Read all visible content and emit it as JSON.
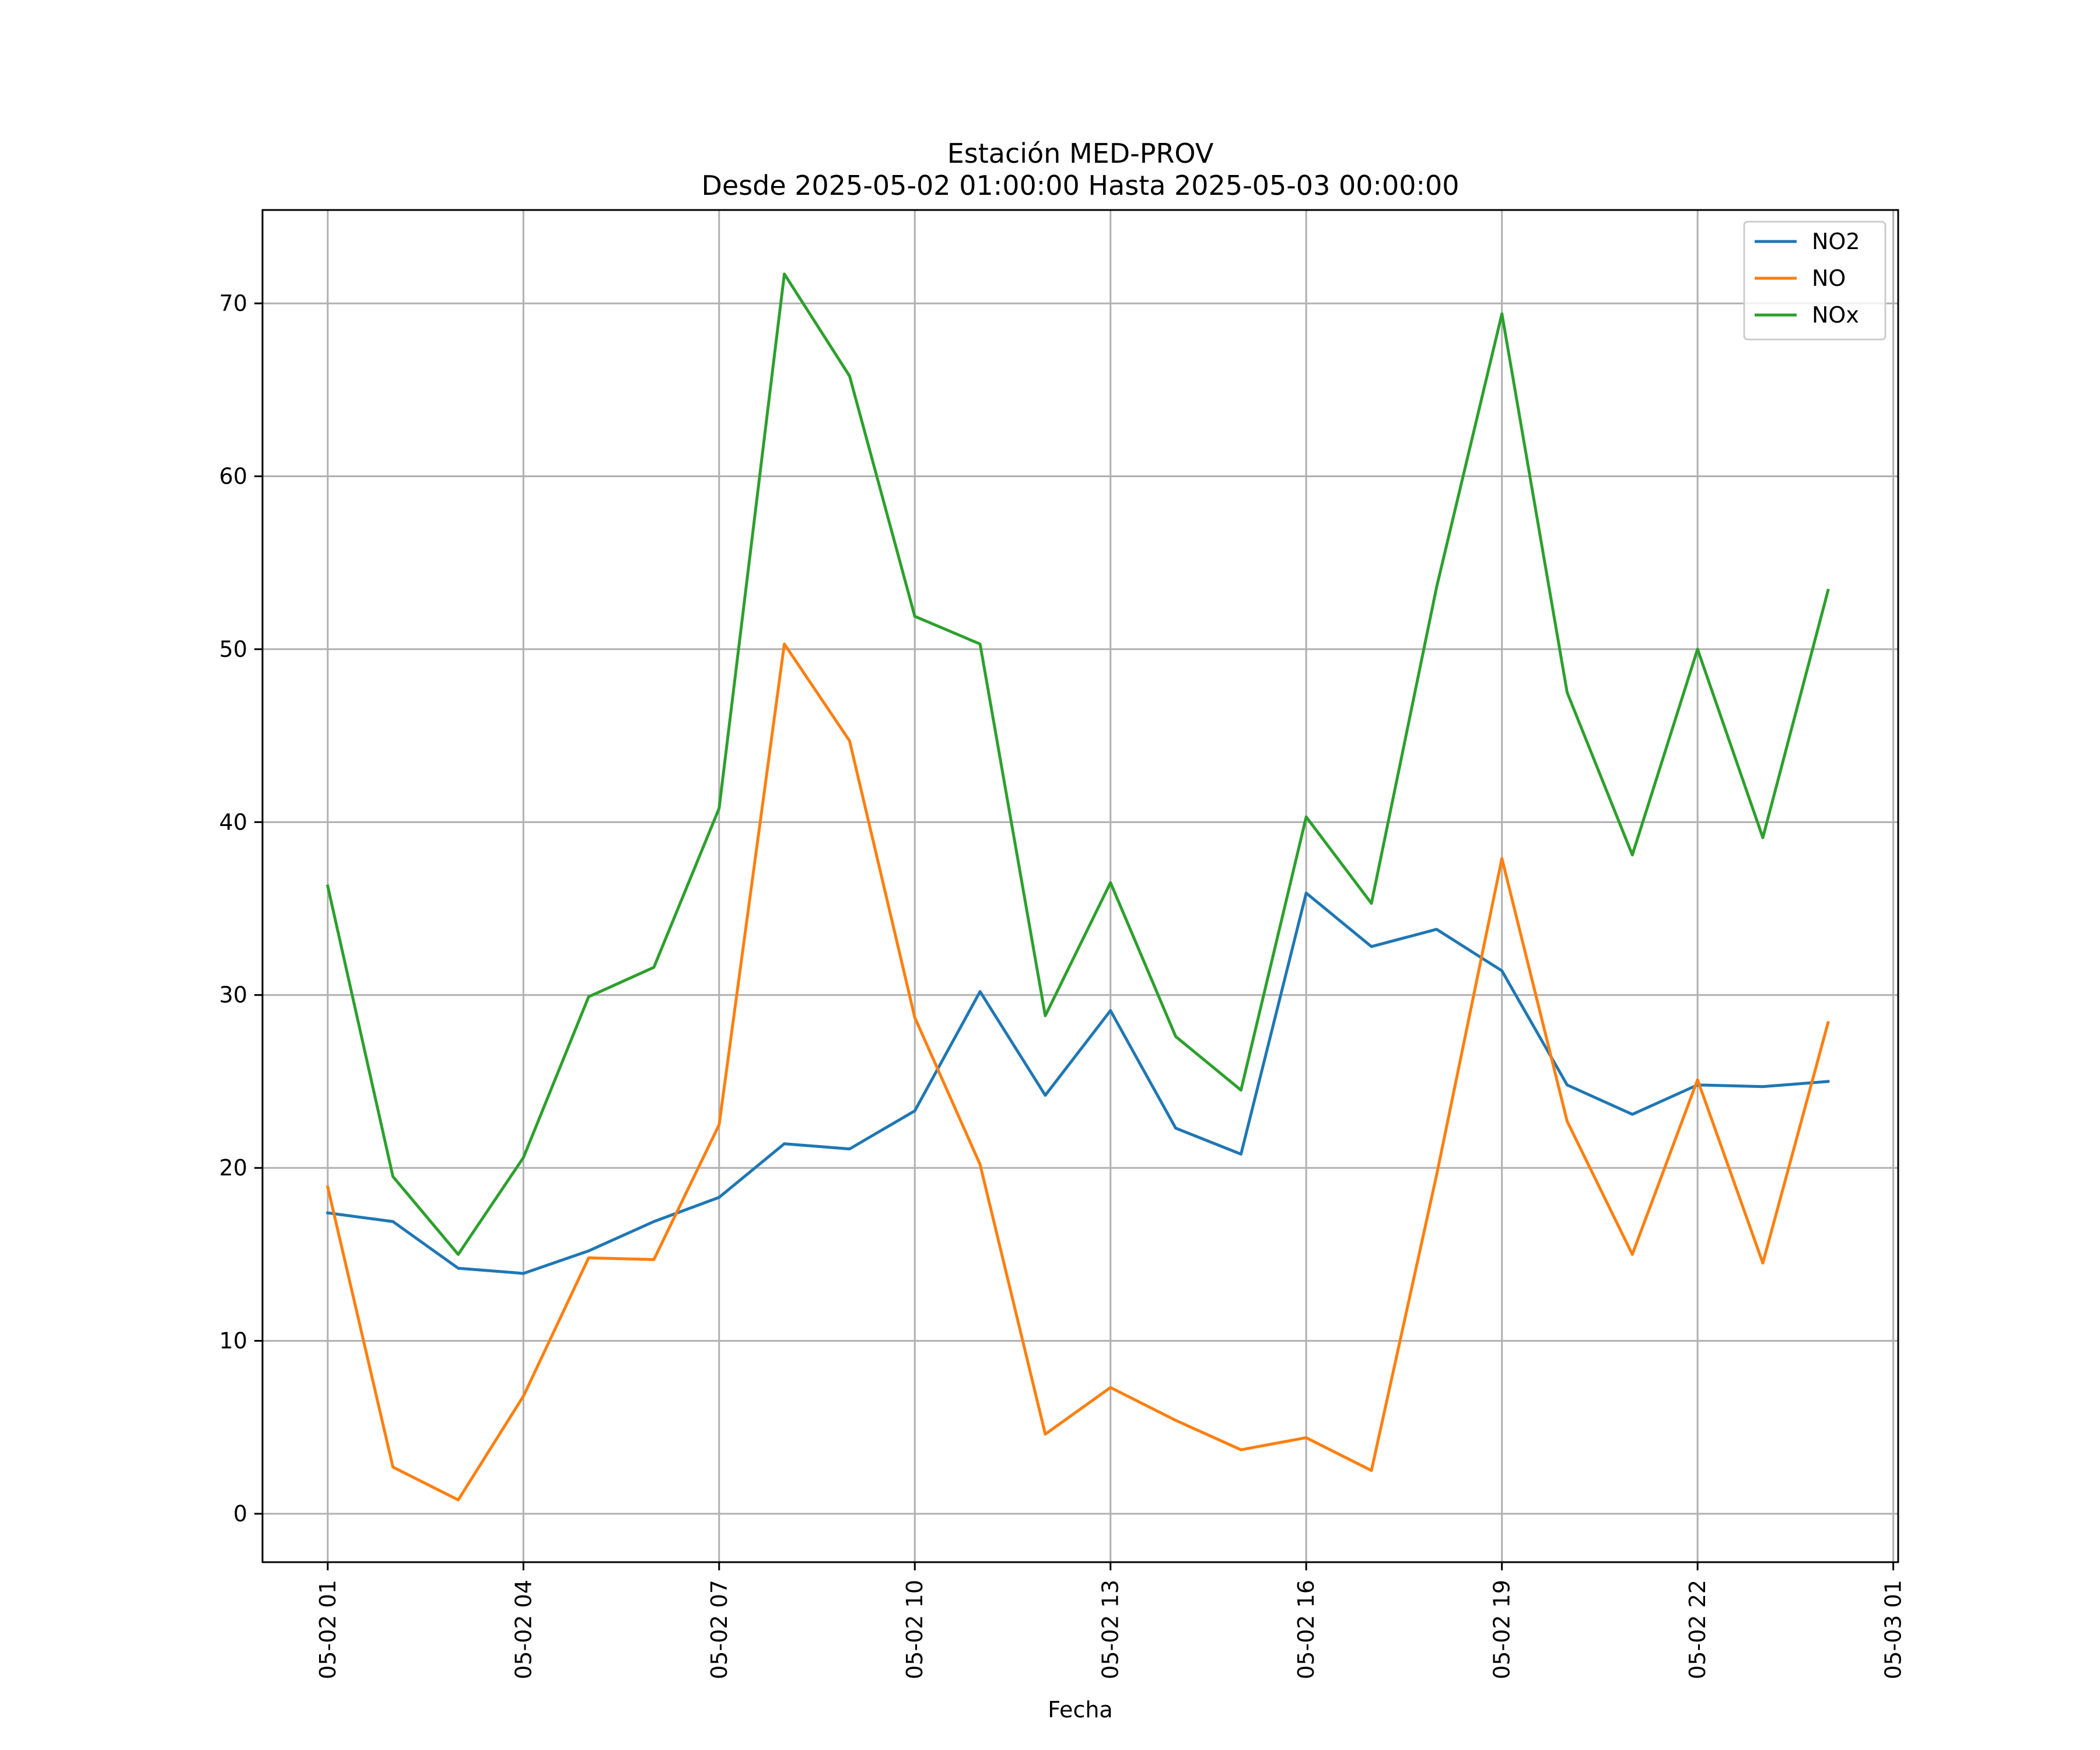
{
  "chart_data": {
    "type": "line",
    "title": "Estación MED-PROV",
    "subtitle": "Desde 2025-05-02 01:00:00 Hasta 2025-05-03 00:00:00",
    "xlabel": "Fecha",
    "ylabel": "",
    "x": [
      "2025-05-02 01:00",
      "2025-05-02 02:00",
      "2025-05-02 03:00",
      "2025-05-02 04:00",
      "2025-05-02 05:00",
      "2025-05-02 06:00",
      "2025-05-02 07:00",
      "2025-05-02 08:00",
      "2025-05-02 09:00",
      "2025-05-02 10:00",
      "2025-05-02 11:00",
      "2025-05-02 12:00",
      "2025-05-02 13:00",
      "2025-05-02 14:00",
      "2025-05-02 15:00",
      "2025-05-02 16:00",
      "2025-05-02 17:00",
      "2025-05-02 18:00",
      "2025-05-02 19:00",
      "2025-05-02 20:00",
      "2025-05-02 21:00",
      "2025-05-02 22:00",
      "2025-05-02 23:00",
      "2025-05-03 00:00"
    ],
    "x_tick_labels": [
      "05-02 01",
      "05-02 04",
      "05-02 07",
      "05-02 10",
      "05-02 13",
      "05-02 16",
      "05-02 19",
      "05-02 22",
      "05-03 01"
    ],
    "x_ticks": [
      "2025-05-02 01:00",
      "2025-05-02 04:00",
      "2025-05-02 07:00",
      "2025-05-02 10:00",
      "2025-05-02 13:00",
      "2025-05-02 16:00",
      "2025-05-02 19:00",
      "2025-05-02 22:00",
      "2025-05-03 01:00"
    ],
    "xlim": [
      "2025-05-02 00:00:00",
      "2025-05-03 01:04:30"
    ],
    "y_ticks": [
      0,
      10,
      20,
      30,
      40,
      50,
      60,
      70
    ],
    "y_tick_labels": [
      "0",
      "10",
      "20",
      "30",
      "40",
      "50",
      "60",
      "70"
    ],
    "ylim": [
      -2.8,
      75.4
    ],
    "grid": true,
    "legend_position": "top-right",
    "series": [
      {
        "name": "NO2",
        "color": "#1f77b4",
        "values": [
          17.4,
          16.9,
          14.2,
          13.9,
          15.2,
          16.9,
          18.3,
          21.4,
          21.1,
          23.3,
          30.2,
          24.2,
          29.1,
          22.3,
          20.8,
          35.9,
          32.8,
          33.8,
          31.4,
          24.8,
          23.1,
          24.8,
          24.7,
          25.0
        ]
      },
      {
        "name": "NO",
        "color": "#ff7f0e",
        "values": [
          18.9,
          2.7,
          0.8,
          6.8,
          14.8,
          14.7,
          22.5,
          50.3,
          44.7,
          28.7,
          20.2,
          4.6,
          7.3,
          5.4,
          3.7,
          4.4,
          2.5,
          19.6,
          37.9,
          22.7,
          15.0,
          25.1,
          14.5,
          28.4
        ]
      },
      {
        "name": "NOx",
        "color": "#2ca02c",
        "values": [
          36.3,
          19.5,
          15.0,
          20.6,
          29.9,
          31.6,
          40.8,
          71.7,
          65.8,
          51.9,
          50.3,
          28.8,
          36.5,
          27.6,
          24.5,
          40.3,
          35.3,
          53.6,
          69.4,
          47.5,
          38.1,
          50.0,
          39.1,
          53.4
        ]
      }
    ]
  }
}
